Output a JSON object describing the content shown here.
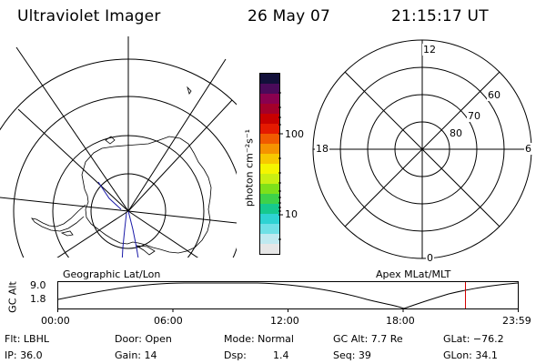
{
  "header": {
    "instrument": "Ultraviolet Imager",
    "date": "26 May 07",
    "time": "21:15:17 UT"
  },
  "left_panel": {
    "caption": "Geographic Lat/Lon"
  },
  "right_panel": {
    "caption": "Apex MLat/MLT",
    "lat_labels": [
      "80",
      "70",
      "60"
    ],
    "mlt_labels": {
      "top": "12",
      "bottom": "0",
      "left": "18",
      "right": "6"
    }
  },
  "colorbar": {
    "label": "photon cm⁻²s⁻¹",
    "ticks": [
      "100",
      "10"
    ],
    "colors": [
      "#e6e6e6",
      "#bfe9f0",
      "#6fe0e6",
      "#2ed3d3",
      "#16c98f",
      "#3ed24a",
      "#7ee01a",
      "#c9ef12",
      "#f4f500",
      "#f7c800",
      "#f59300",
      "#f05a00",
      "#e41a00",
      "#c80000",
      "#a4002a",
      "#8a004f",
      "#4a0a5a",
      "#12103a"
    ]
  },
  "timeline": {
    "ylabel": "GC Alt",
    "y_ticks": [
      "9.0",
      "1.8"
    ],
    "x_ticks": [
      "00:00",
      "06:00",
      "12:00",
      "18:00",
      "23:59"
    ],
    "current_time_fraction": 0.8854,
    "marker_color": "#d40000"
  },
  "info": {
    "flt": "Flt: LBHL",
    "door": "Door: Open",
    "mode": "Mode: Normal",
    "gc_alt": "GC Alt: 7.7 Re",
    "glat": "GLat: −76.2",
    "ip": "IP: 36.0",
    "gain": "Gain: 14",
    "dsp_label": "Dsp:",
    "dsp_value": "1.4",
    "seq": "Seq: 39",
    "glon": "GLon: 34.1"
  }
}
